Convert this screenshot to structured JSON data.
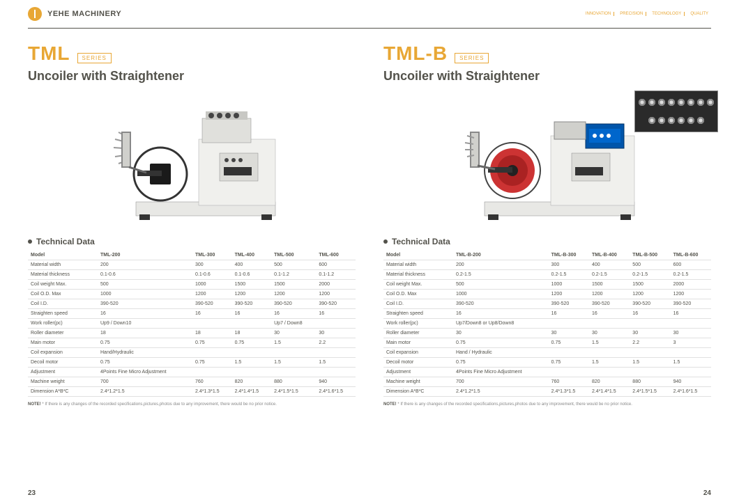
{
  "header": {
    "brand": "YEHE MACHINERY",
    "nav": [
      "INNOVATION",
      "PRECISION",
      "TECHNOLOGY",
      "QUALITY"
    ]
  },
  "left": {
    "series": "TML",
    "badge": "SERIES",
    "subtitle": "Uncoiler with Straightener",
    "tech_label": "Technical Data",
    "columns": [
      "Model",
      "TML-200",
      "TML-300",
      "TML-400",
      "TML-500",
      "TML-600"
    ],
    "rows": [
      [
        "Material width",
        "200",
        "300",
        "400",
        "500",
        "600"
      ],
      [
        "Material thickness",
        "0.1-0.6",
        "0.1-0.6",
        "0.1-0.6",
        "0.1-1.2",
        "0.1-1.2"
      ],
      [
        "Coil weight Max.",
        "500",
        "1000",
        "1500",
        "1500",
        "2000"
      ],
      [
        "Coil O.D. Max",
        "1000",
        "1200",
        "1200",
        "1200",
        "1200"
      ],
      [
        "Coil I.D.",
        "390-520",
        "390-520",
        "390-520",
        "390-520",
        "390-520"
      ],
      [
        "Straighten speed",
        "16",
        "16",
        "16",
        "16",
        "16"
      ],
      [
        "Work roller(pc)",
        "Up9 / Down10",
        "",
        "",
        "Up7 / Down8",
        ""
      ],
      [
        "Roller diameter",
        "18",
        "18",
        "18",
        "30",
        "30"
      ],
      [
        "Main motor",
        "0.75",
        "0.75",
        "0.75",
        "1.5",
        "2.2"
      ],
      [
        "Coil expansion",
        "Hand/Hydraulic",
        "",
        "",
        "",
        ""
      ],
      [
        "Decoil motor",
        "0.75",
        "0.75",
        "1.5",
        "1.5",
        "1.5"
      ],
      [
        "Adjustment",
        "4Points Fine Micro Adjustment",
        "",
        "",
        "",
        ""
      ],
      [
        "Machine weight",
        "700",
        "760",
        "820",
        "880",
        "940"
      ],
      [
        "Dimension A*B*C",
        "2.4*1.2*1.5",
        "2.4*1.3*1.5",
        "2.4*1.4*1.5",
        "2.4*1.5*1.5",
        "2.4*1.6*1.5"
      ]
    ],
    "note_label": "NOTE!",
    "note": "* If there is any changes of the recorded specifications,pictures,photos due to any improvement, there would be no prior notice.",
    "page": "23"
  },
  "right": {
    "series": "TML-B",
    "badge": "SERIES",
    "subtitle": "Uncoiler with Straightener",
    "tech_label": "Technical Data",
    "columns": [
      "Model",
      "TML-B-200",
      "TML-B-300",
      "TML-B-400",
      "TML-B-500",
      "TML-B-600"
    ],
    "rows": [
      [
        "Material width",
        "200",
        "300",
        "400",
        "500",
        "600"
      ],
      [
        "Material thickness",
        "0.2-1.5",
        "0.2-1.5",
        "0.2-1.5",
        "0.2-1.5",
        "0.2-1.5"
      ],
      [
        "Coil weight Max.",
        "500",
        "1000",
        "1500",
        "1500",
        "2000"
      ],
      [
        "Coil O.D. Max",
        "1000",
        "1200",
        "1200",
        "1200",
        "1200"
      ],
      [
        "Coil I.D.",
        "390-520",
        "390-520",
        "390-520",
        "390-520",
        "390-520"
      ],
      [
        "Straighten speed",
        "16",
        "16",
        "16",
        "16",
        "16"
      ],
      [
        "Work roller(pc)",
        "Up7/Down8 or Up8/Down8",
        "",
        "",
        "",
        ""
      ],
      [
        "Roller diameter",
        "30",
        "30",
        "30",
        "30",
        "30"
      ],
      [
        "Main motor",
        "0.75",
        "0.75",
        "1.5",
        "2.2",
        "3"
      ],
      [
        "Coil expansion",
        "Hand / Hydraulic",
        "",
        "",
        "",
        ""
      ],
      [
        "Decoil motor",
        "0.75",
        "0.75",
        "1.5",
        "1.5",
        "1.5"
      ],
      [
        "Adjustment",
        "4Points Fine Micro Adjustment",
        "",
        "",
        "",
        ""
      ],
      [
        "Machine weight",
        "700",
        "760",
        "820",
        "880",
        "940"
      ],
      [
        "Dimension A*B*C",
        "2.4*1.2*1.5",
        "2.4*1.3*1.5",
        "2.4*1.4*1.5",
        "2.4*1.5*1.5",
        "2.4*1.6*1.5"
      ]
    ],
    "note_label": "NOTE!",
    "note": "* If there is any changes of the recorded specifications,pictures,photos due to any improvement, there would be no prior notice.",
    "page": "24"
  },
  "colors": {
    "accent": "#e8a735",
    "text": "#53524b",
    "blue": "#0066cc",
    "red": "#cc3333"
  }
}
